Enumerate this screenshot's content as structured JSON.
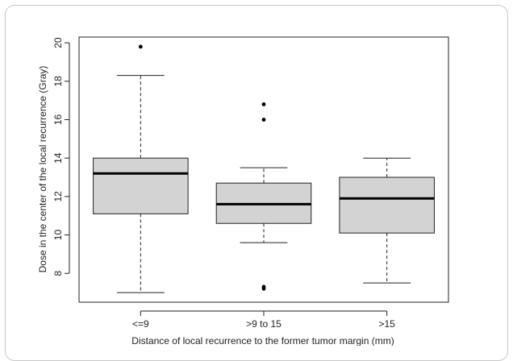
{
  "chart_data": {
    "type": "boxplot",
    "xlabel": "Distance of local recurrence to the former tumor margin (mm)",
    "ylabel": "Dose in the center of the local recurrence (Gray)",
    "ylim": [
      6.5,
      20.3
    ],
    "yticks": [
      8,
      10,
      12,
      14,
      16,
      18,
      20
    ],
    "categories": [
      "<=9",
      ">9 to 15",
      ">15"
    ],
    "boxes": [
      {
        "category": "<=9",
        "whisker_low": 7.0,
        "q1": 11.1,
        "median": 13.2,
        "q3": 14.0,
        "whisker_high": 18.3,
        "outliers": [
          19.8
        ]
      },
      {
        "category": ">9 to 15",
        "whisker_low": 9.6,
        "q1": 10.6,
        "median": 11.6,
        "q3": 12.7,
        "whisker_high": 13.5,
        "outliers": [
          16.8,
          16.0,
          7.3,
          7.2
        ]
      },
      {
        "category": ">15",
        "whisker_low": 7.5,
        "q1": 10.1,
        "median": 11.9,
        "q3": 13.0,
        "whisker_high": 14.0,
        "outliers": []
      }
    ],
    "box_color": "#d3d3d3",
    "grid": false,
    "legend": "none"
  }
}
